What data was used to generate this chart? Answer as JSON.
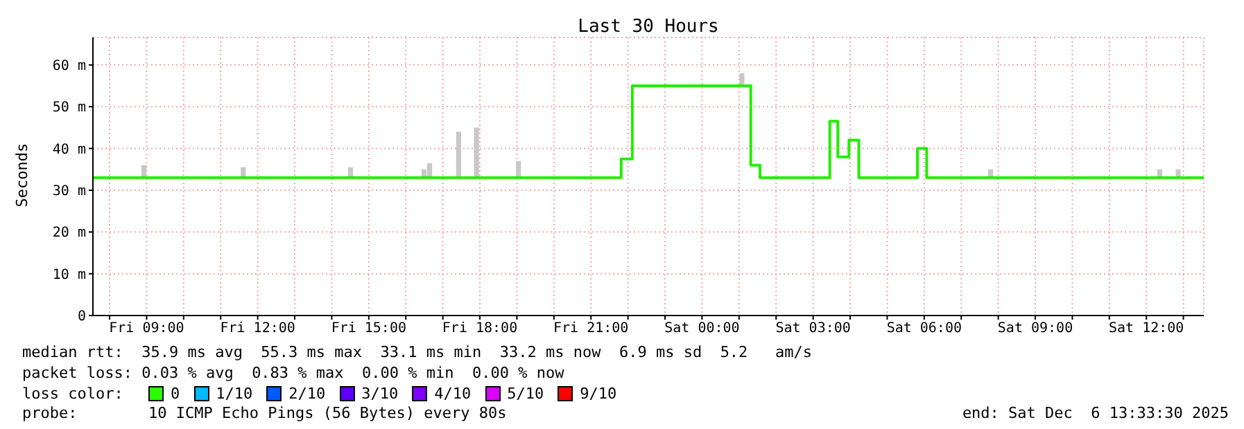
{
  "chart_data": {
    "type": "step",
    "title": "Last 30 Hours",
    "ylabel": "Seconds",
    "xlim": [
      "2025-12-05T07:33",
      "2025-12-06T13:33"
    ],
    "xticks": [
      {
        "value": "2025-12-05T08:00",
        "label": null
      },
      {
        "value": "2025-12-05T09:00",
        "label": "Fri 09:00"
      },
      {
        "value": "2025-12-05T10:00",
        "label": null
      },
      {
        "value": "2025-12-05T11:00",
        "label": null
      },
      {
        "value": "2025-12-05T12:00",
        "label": "Fri 12:00"
      },
      {
        "value": "2025-12-05T13:00",
        "label": null
      },
      {
        "value": "2025-12-05T14:00",
        "label": null
      },
      {
        "value": "2025-12-05T15:00",
        "label": "Fri 15:00"
      },
      {
        "value": "2025-12-05T16:00",
        "label": null
      },
      {
        "value": "2025-12-05T17:00",
        "label": null
      },
      {
        "value": "2025-12-05T18:00",
        "label": "Fri 18:00"
      },
      {
        "value": "2025-12-05T19:00",
        "label": null
      },
      {
        "value": "2025-12-05T20:00",
        "label": null
      },
      {
        "value": "2025-12-05T21:00",
        "label": "Fri 21:00"
      },
      {
        "value": "2025-12-05T22:00",
        "label": null
      },
      {
        "value": "2025-12-05T23:00",
        "label": null
      },
      {
        "value": "2025-12-06T00:00",
        "label": "Sat 00:00"
      },
      {
        "value": "2025-12-06T01:00",
        "label": null
      },
      {
        "value": "2025-12-06T02:00",
        "label": null
      },
      {
        "value": "2025-12-06T03:00",
        "label": "Sat 03:00"
      },
      {
        "value": "2025-12-06T04:00",
        "label": null
      },
      {
        "value": "2025-12-06T05:00",
        "label": null
      },
      {
        "value": "2025-12-06T06:00",
        "label": "Sat 06:00"
      },
      {
        "value": "2025-12-06T07:00",
        "label": null
      },
      {
        "value": "2025-12-06T08:00",
        "label": null
      },
      {
        "value": "2025-12-06T09:00",
        "label": "Sat 09:00"
      },
      {
        "value": "2025-12-06T10:00",
        "label": null
      },
      {
        "value": "2025-12-06T11:00",
        "label": null
      },
      {
        "value": "2025-12-06T12:00",
        "label": "Sat 12:00"
      },
      {
        "value": "2025-12-06T13:00",
        "label": null
      }
    ],
    "ylim": [
      0,
      66.6
    ],
    "yticks": [
      0,
      {
        "value": 10,
        "label": "10 m"
      },
      {
        "value": 20,
        "label": "20 m"
      },
      {
        "value": 30,
        "label": "30 m"
      },
      {
        "value": 40,
        "label": "40 m"
      },
      {
        "value": 50,
        "label": "50 m"
      },
      {
        "value": 60,
        "label": "60 m"
      }
    ],
    "grid": true,
    "series": [
      {
        "type": "bar",
        "color": "#c8c8c8",
        "x": [
          "2025-12-05T08:56",
          "2025-12-05T11:37",
          "2025-12-05T14:31",
          "2025-12-05T16:30",
          "2025-12-05T16:39",
          "2025-12-05T17:26",
          "2025-12-05T17:55",
          "2025-12-05T19:03",
          "2025-12-06T01:05",
          "2025-12-06T07:48",
          "2025-12-06T12:22",
          "2025-12-06T12:52"
        ],
        "base": [
          33,
          33,
          33,
          33,
          33,
          33,
          33,
          33,
          55,
          33,
          33,
          33
        ],
        "values": [
          3,
          2.5,
          2.5,
          2,
          3.5,
          11,
          12,
          4,
          3,
          2,
          2,
          2
        ]
      },
      {
        "color": "#22ee00",
        "x": [
          "2025-12-05T07:33",
          "2025-12-05T21:49",
          "2025-12-05T22:07",
          "2025-12-06T01:19",
          "2025-12-06T01:34",
          "2025-12-06T03:27",
          "2025-12-06T03:40",
          "2025-12-06T03:58",
          "2025-12-06T04:14",
          "2025-12-06T05:49",
          "2025-12-06T06:04",
          "2025-12-06T13:33"
        ],
        "values": [
          33,
          37.5,
          55,
          36,
          33,
          46.5,
          38,
          42,
          33,
          40,
          33,
          33
        ]
      }
    ],
    "annotations": [
      "median rtt:  35.9 ms avg  55.3 ms max  33.1 ms min  33.2 ms now  6.9 ms sd  5.2   am/s",
      "packet loss: 0.03 % avg  0.83 % max  0.00 % min  0.00 % now",
      "loss color:",
      "0",
      "1/10",
      "2/10",
      "3/10",
      "4/10",
      "5/10",
      "9/10",
      "probe:",
      "10 ICMP Echo Pings (56 Bytes) every 80s",
      "end: Sat Dec  6 13:33:30 2025"
    ]
  }
}
